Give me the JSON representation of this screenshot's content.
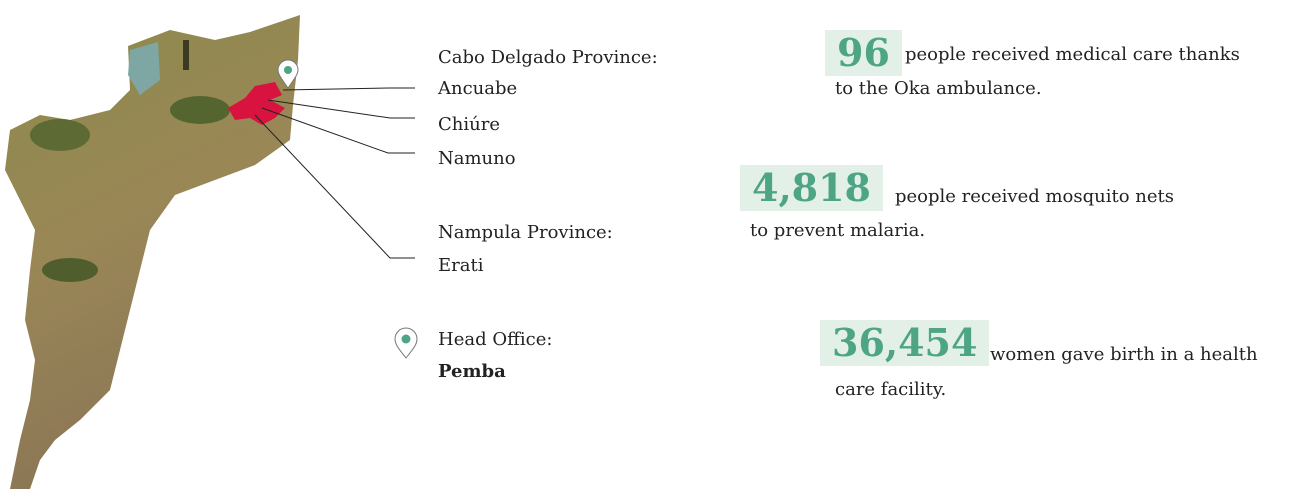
{
  "regions": [
    {
      "province": "Cabo Delgado Province:",
      "districts": [
        "Ancuabe",
        "Chiúre",
        "Namuno"
      ]
    },
    {
      "province": "Nampula Province:",
      "districts": [
        "Erati"
      ]
    }
  ],
  "head_office": {
    "label": "Head Office:",
    "city": "Pemba"
  },
  "stats": [
    {
      "number": "96",
      "lines": [
        "people received medical care thanks",
        "to the Oka ambulance."
      ]
    },
    {
      "number": "4,818",
      "lines": [
        "people received mosquito nets",
        "to prevent malaria."
      ]
    },
    {
      "number": "36,454",
      "lines": [
        "women gave birth in a health",
        "care facility."
      ]
    }
  ]
}
